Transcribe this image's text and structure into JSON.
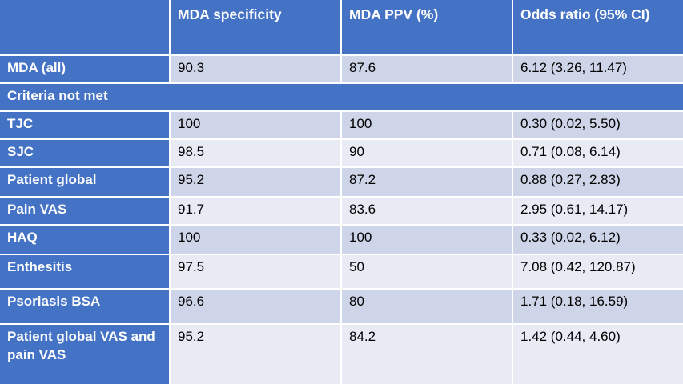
{
  "chart_data": {
    "type": "table",
    "columns": [
      "",
      "MDA specificity",
      "MDA PPV (%)",
      "Odds ratio (95% CI)"
    ],
    "rows": [
      {
        "label": "MDA (all)",
        "section": false,
        "values": [
          "90.3",
          "87.6",
          "6.12 (3.26, 11.47)"
        ]
      },
      {
        "label": "Criteria not met",
        "section": true,
        "values": []
      },
      {
        "label": "TJC",
        "section": false,
        "values": [
          "100",
          "100",
          "0.30 (0.02, 5.50)"
        ]
      },
      {
        "label": "SJC",
        "section": false,
        "values": [
          "98.5",
          "90",
          "0.71 (0.08, 6.14)"
        ]
      },
      {
        "label": "Patient global",
        "section": false,
        "values": [
          "95.2",
          "87.2",
          "0.88 (0.27, 2.83)"
        ]
      },
      {
        "label": "Pain VAS",
        "section": false,
        "values": [
          "91.7",
          "83.6",
          "2.95 (0.61, 14.17)"
        ]
      },
      {
        "label": "HAQ",
        "section": false,
        "values": [
          "100",
          "100",
          "0.33 (0.02, 6.12)"
        ]
      },
      {
        "label": "Enthesitis",
        "section": false,
        "values": [
          "97.5",
          "50",
          "7.08 (0.42, 120.87)"
        ]
      },
      {
        "label": "Psoriasis BSA",
        "section": false,
        "values": [
          "96.6",
          "80",
          "1.71 (0.18, 16.59)"
        ]
      },
      {
        "label": "Patient global VAS and pain VAS",
        "section": false,
        "values": [
          "95.2",
          "84.2",
          "1.42 (0.44, 4.60)"
        ]
      }
    ],
    "layout": {
      "legend": "none",
      "grid": "2px white separators between all cells",
      "row_banding": [
        "dark",
        "light"
      ]
    }
  },
  "colors": {
    "header_blue": "#4472C4",
    "band_dark": "#CFD5E8",
    "band_light": "#E9EBF4",
    "separator_white": "#FFFFFF",
    "header_text": "#FFFFFF",
    "body_text": "#000000"
  }
}
